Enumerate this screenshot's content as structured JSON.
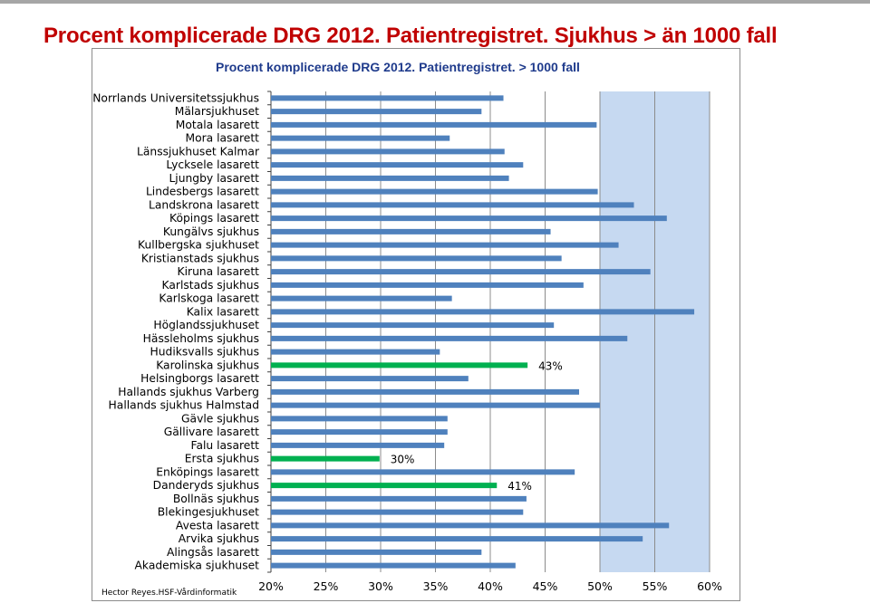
{
  "page": {
    "title": "Procent komplicerade DRG 2012. Patientregistret.  Sjukhus > än 1000 fall",
    "credit": "Hector Reyes.HSF-Vårdinformatik"
  },
  "colors": {
    "title": "#c00000",
    "chart_title": "#1f3b8c",
    "bar": "#4f81bd",
    "highlight_bar": "#00b050",
    "plot_background": "#c6d9f1",
    "gridline": "#8c8c8c"
  },
  "chart_data": {
    "type": "bar",
    "orientation": "horizontal",
    "title": "Procent komplicerade DRG 2012. Patientregistret. > 1000 fall",
    "xlim": [
      20,
      60
    ],
    "x_ticks": [
      20,
      25,
      30,
      35,
      40,
      45,
      50,
      55,
      60
    ],
    "x_tick_labels": [
      "20%",
      "25%",
      "30%",
      "35%",
      "40%",
      "45%",
      "50%",
      "55%",
      "60%"
    ],
    "grid": "vertical",
    "categories": [
      "Norrlands Universitetssjukhus",
      "Mälarsjukhuset",
      "Motala lasarett",
      "Mora lasarett",
      "Länssjukhuset Kalmar",
      "Lycksele lasarett",
      "Ljungby lasarett",
      "Lindesbergs lasarett",
      "Landskrona lasarett",
      "Köpings lasarett",
      "Kungälvs sjukhus",
      "Kullbergska sjukhuset",
      "Kristianstads sjukhus",
      "Kiruna lasarett",
      "Karlstads sjukhus",
      "Karlskoga lasarett",
      "Kalix lasarett",
      "Höglandssjukhuset",
      "Hässleholms sjukhus",
      "Hudiksvalls sjukhus",
      "Karolinska sjukhus",
      "Helsingborgs lasarett",
      "Hallands sjukhus Varberg",
      "Hallands sjukhus Halmstad",
      "Gävle sjukhus",
      "Gällivare lasarett",
      "Falu lasarett",
      "Ersta sjukhus",
      "Enköpings lasarett",
      "Danderyds sjukhus",
      "Bollnäs sjukhus",
      "Blekingesjukhuset",
      "Avesta lasarett",
      "Arvika sjukhus",
      "Alingsås lasarett",
      "Akademiska sjukhuset"
    ],
    "values": [
      41.2,
      39.2,
      49.7,
      36.3,
      41.3,
      43.0,
      41.7,
      49.8,
      53.1,
      56.1,
      45.5,
      51.7,
      46.5,
      54.6,
      48.5,
      36.5,
      58.6,
      45.8,
      52.5,
      35.4,
      43.4,
      38.0,
      48.1,
      50.0,
      36.1,
      36.1,
      35.8,
      29.9,
      47.7,
      40.6,
      43.3,
      43.0,
      56.3,
      53.9,
      39.2,
      42.3
    ],
    "highlight_color": "#00b050",
    "highlighted": [
      "Karolinska sjukhus",
      "Ersta sjukhus",
      "Danderyds sjukhus"
    ],
    "annotations": [
      {
        "category": "Karolinska sjukhus",
        "text": "43%"
      },
      {
        "category": "Ersta sjukhus",
        "text": "30%"
      },
      {
        "category": "Danderyds sjukhus",
        "text": "41%"
      }
    ]
  }
}
